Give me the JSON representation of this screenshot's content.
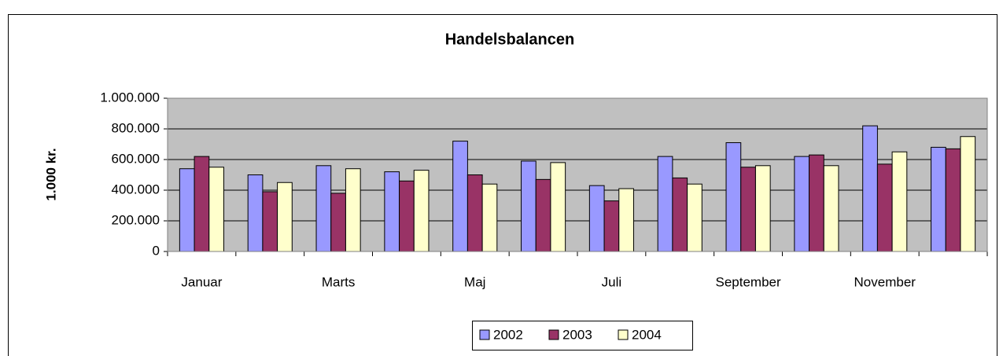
{
  "chart_data": {
    "type": "bar",
    "title": "Handelsbalancen",
    "y_label": "1.000 kr.",
    "categories": [
      "Januar",
      null,
      "Marts",
      null,
      "Maj",
      null,
      "Juli",
      null,
      "September",
      null,
      "November",
      null
    ],
    "series": [
      {
        "name": "2002",
        "color": "#9999ff",
        "values": [
          540000,
          500000,
          560000,
          520000,
          720000,
          590000,
          430000,
          620000,
          710000,
          620000,
          820000,
          680000
        ]
      },
      {
        "name": "2003",
        "color": "#993366",
        "values": [
          620000,
          390000,
          380000,
          460000,
          500000,
          470000,
          330000,
          480000,
          550000,
          630000,
          570000,
          670000
        ]
      },
      {
        "name": "2004",
        "color": "#ffffcc",
        "values": [
          550000,
          450000,
          540000,
          530000,
          440000,
          580000,
          410000,
          440000,
          560000,
          560000,
          650000,
          750000
        ]
      }
    ],
    "ylim": [
      0,
      1000000
    ],
    "yticks": [
      0,
      {
        "value": 200000,
        "label": "200.000"
      },
      {
        "value": 400000,
        "label": "400.000"
      },
      {
        "value": 600000,
        "label": "600.000"
      },
      {
        "value": 800000,
        "label": "800.000"
      },
      {
        "value": 1000000,
        "label": "1.000.000"
      }
    ],
    "grid": true,
    "plot_background": "#c0c0c0",
    "legend": "bottom"
  }
}
